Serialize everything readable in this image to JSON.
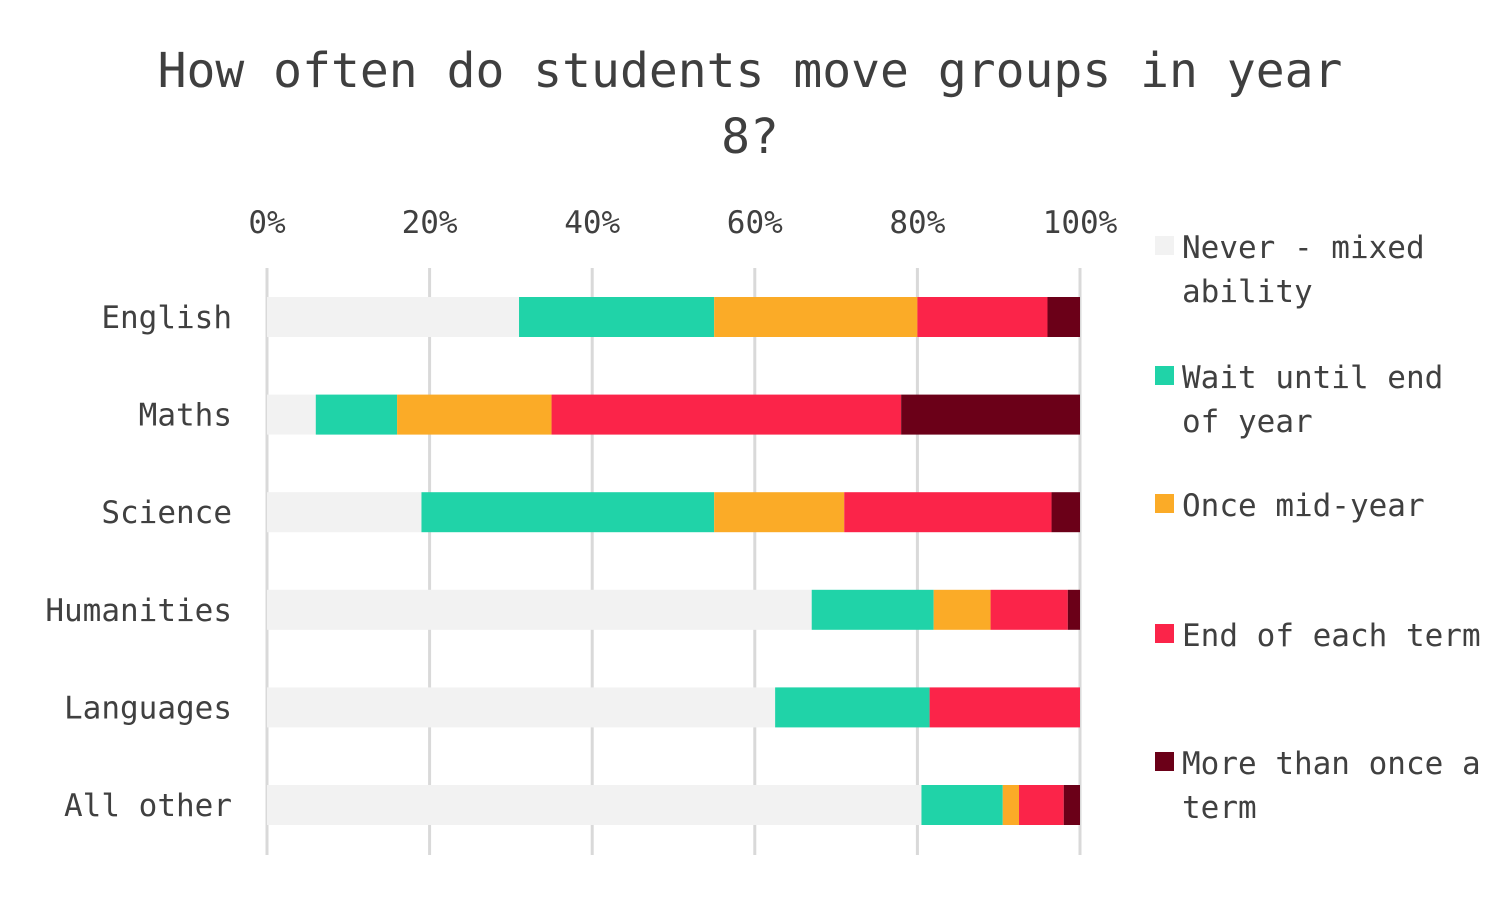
{
  "title": "How often do students move groups in year 8?",
  "chart_data": {
    "type": "bar",
    "orientation": "horizontal",
    "stacked": true,
    "title": "How often do students move groups in year 8?",
    "categories": [
      "English",
      "Maths",
      "Science",
      "Humanities",
      "Languages",
      "All other"
    ],
    "xlim": [
      0,
      100
    ],
    "xticks": [
      "0%",
      "20%",
      "40%",
      "60%",
      "80%",
      "100%"
    ],
    "xtick_values": [
      0,
      20,
      40,
      60,
      80,
      100
    ],
    "grid": true,
    "legend_position": "right",
    "series": [
      {
        "name": "Never - mixed ability",
        "color": "#f2f2f2",
        "values": [
          31,
          6,
          19,
          67,
          62.5,
          80.5
        ]
      },
      {
        "name": "Wait until end of year",
        "color": "#20d3a8",
        "values": [
          24,
          10,
          36,
          15,
          19,
          10
        ]
      },
      {
        "name": "Once mid-year",
        "color": "#fbab27",
        "values": [
          25,
          19,
          16,
          7,
          0,
          2
        ]
      },
      {
        "name": "End of each term",
        "color": "#fb2449",
        "values": [
          16,
          43,
          25.5,
          9.5,
          18.5,
          5.5
        ]
      },
      {
        "name": "More than once a term",
        "color": "#6b0018",
        "values": [
          4,
          22,
          3.5,
          1.5,
          0,
          2
        ]
      }
    ]
  }
}
